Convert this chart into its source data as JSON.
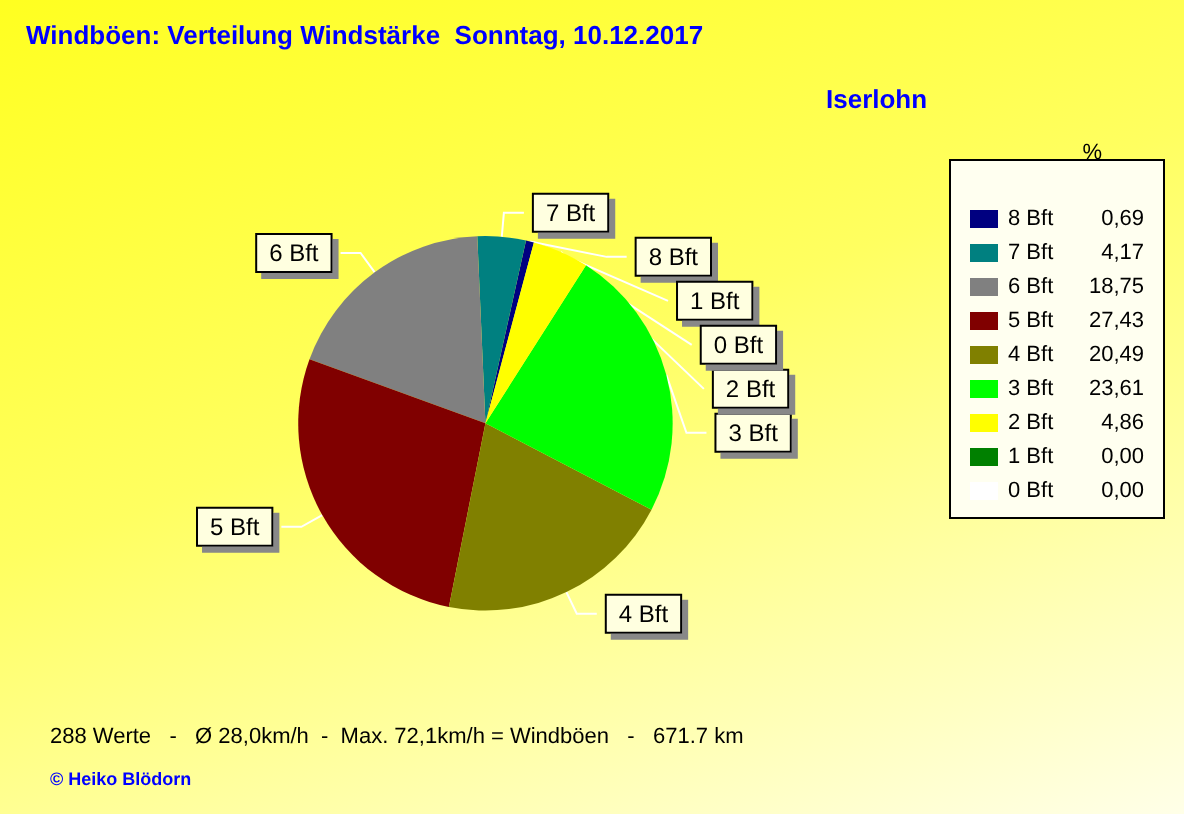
{
  "chart_data": {
    "type": "pie",
    "title": "Windböen: Verteilung Windstärke  Sonntag, 10.12.2017",
    "subtitle": "Iserlohn",
    "legend_title": "%",
    "categories": [
      "8 Bft",
      "7 Bft",
      "6 Bft",
      "5 Bft",
      "4 Bft",
      "3 Bft",
      "2 Bft",
      "1 Bft",
      "0 Bft"
    ],
    "values": [
      0.69,
      4.17,
      18.75,
      27.43,
      20.49,
      23.61,
      4.86,
      0.0,
      0.0
    ],
    "value_labels": [
      "0,69",
      "4,17",
      "18,75",
      "27,43",
      "20,49",
      "23,61",
      "4,86",
      "0,00",
      "0,00"
    ],
    "colors": [
      "#000080",
      "#008080",
      "#808080",
      "#800000",
      "#808000",
      "#00ff00",
      "#ffff00",
      "#008000",
      "#ffffff"
    ],
    "legend": "right",
    "annotations": [
      "288 Werte   -   Ø 28,0km/h  -  Max. 72,1km/h = Windböen   -   671.7 km",
      "© Heiko Blödorn"
    ]
  }
}
